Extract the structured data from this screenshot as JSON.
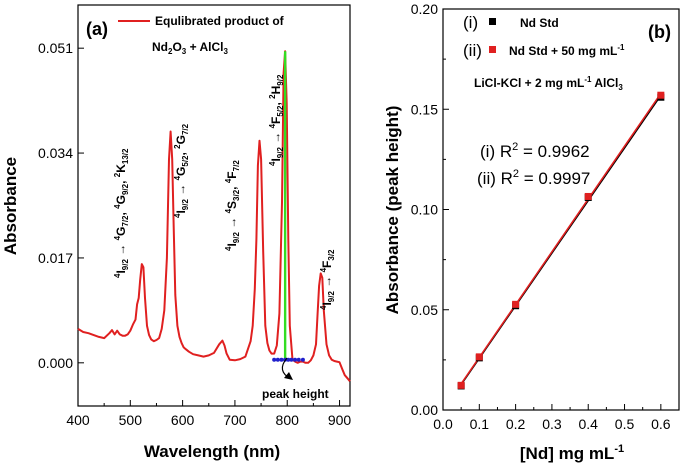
{
  "chart_data": [
    {
      "type": "line",
      "panel_label": "(a)",
      "xlabel": "Wavelength (nm)",
      "ylabel": "Absorbance",
      "xlim": [
        400,
        920
      ],
      "ylim": [
        -0.007,
        0.058
      ],
      "xticks": [
        400,
        500,
        600,
        700,
        800,
        900
      ],
      "xtick_labels": [
        "400",
        "500",
        "600",
        "700",
        "800",
        "900"
      ],
      "yticks": [
        0.0,
        0.017,
        0.034,
        0.051
      ],
      "ytick_labels": [
        "0.000",
        "0.017",
        "0.034",
        "0.051"
      ],
      "legend": {
        "label": "Equlibrated product of",
        "line2": "Nd2O3 + AlCl3",
        "color": "#e02020",
        "placement": "top"
      },
      "series": [
        {
          "name": "Equlibrated product of Nd2O3 + AlCl3",
          "color": "#e02020",
          "x": [
            400,
            410,
            420,
            430,
            440,
            450,
            460,
            465,
            470,
            475,
            480,
            485,
            490,
            495,
            500,
            505,
            510,
            513,
            516,
            519,
            522,
            525,
            528,
            532,
            536,
            540,
            545,
            550,
            555,
            560,
            565,
            570,
            574,
            577,
            580,
            583,
            586,
            590,
            594,
            598,
            602,
            606,
            612,
            620,
            630,
            640,
            650,
            660,
            670,
            676,
            680,
            684,
            690,
            700,
            710,
            720,
            730,
            734,
            738,
            741,
            744,
            747,
            750,
            754,
            758,
            762,
            766,
            770,
            775,
            780,
            785,
            790,
            793,
            796,
            799,
            802,
            805,
            810,
            815,
            820,
            825,
            830,
            835,
            840,
            845,
            850,
            855,
            858,
            861,
            864,
            867,
            870,
            875,
            880,
            885,
            890,
            895,
            900,
            905,
            910,
            915,
            920
          ],
          "y": [
            0.0055,
            0.005,
            0.0048,
            0.0045,
            0.0042,
            0.004,
            0.0048,
            0.0053,
            0.0046,
            0.0052,
            0.0046,
            0.0044,
            0.0044,
            0.0046,
            0.0052,
            0.0062,
            0.007,
            0.0095,
            0.0105,
            0.0135,
            0.016,
            0.0155,
            0.0105,
            0.006,
            0.0045,
            0.0038,
            0.0035,
            0.0037,
            0.004,
            0.0055,
            0.0085,
            0.017,
            0.033,
            0.0375,
            0.033,
            0.022,
            0.011,
            0.006,
            0.0042,
            0.0032,
            0.0025,
            0.0022,
            0.0018,
            0.0014,
            0.0012,
            0.001,
            0.0012,
            0.0016,
            0.003,
            0.0036,
            0.0028,
            0.0015,
            0.0005,
            0.0004,
            0.0006,
            0.001,
            0.0035,
            0.006,
            0.012,
            0.02,
            0.032,
            0.036,
            0.033,
            0.018,
            0.006,
            0.0032,
            0.002,
            0.0015,
            0.0015,
            0.0028,
            0.008,
            0.026,
            0.047,
            0.0505,
            0.042,
            0.02,
            0.006,
            0.0005,
            0.0002,
            0.0,
            0.0002,
            0.0002,
            0.0,
            0.0,
            0.0004,
            0.0012,
            0.003,
            0.008,
            0.0125,
            0.0145,
            0.0138,
            0.0085,
            0.003,
            0.0012,
            0.0005,
            0.0003,
            0.0002,
            0.0001,
            -0.001,
            -0.002,
            -0.0025,
            -0.003
          ]
        }
      ],
      "peak_height_marker": {
        "x": 796,
        "baseline_y": 0.0005,
        "peak_y": 0.0505,
        "color": "#33dd22"
      },
      "baseline_dots": {
        "x": [
          775,
          782,
          789,
          796,
          802,
          808,
          815,
          822,
          830
        ],
        "y": [
          0.0005,
          0.0005,
          0.0005,
          0.0005,
          0.0005,
          0.0005,
          0.0005,
          0.0005,
          0.0005
        ],
        "color": "#2020cc"
      },
      "annotations": [
        {
          "text": "peak height"
        },
        {
          "prefix": "4",
          "main": "I",
          "sub": "9/2",
          "arrow": "→",
          "lines": [
            {
              "sup": "4",
              "main": "G",
              "sub": "7/2",
              "tail": ","
            },
            {
              "sup": "4",
              "main": "G",
              "sub": "9/2",
              "tail": ","
            },
            {
              "sup": "2",
              "main": "K",
              "sub": "13/2",
              "tail": ""
            }
          ]
        },
        {
          "prefix": "4",
          "main": "I",
          "sub": "9/2",
          "arrow": "→",
          "lines": [
            {
              "sup": "4",
              "main": "G",
              "sub": "5/2",
              "tail": ","
            },
            {
              "sup": "2",
              "main": "G",
              "sub": "7/2",
              "tail": ""
            }
          ]
        },
        {
          "prefix": "4",
          "main": "I",
          "sub": "9/2",
          "arrow": "→",
          "lines": [
            {
              "sup": "4",
              "main": "S",
              "sub": "3/2",
              "tail": ","
            },
            {
              "sup": "4",
              "main": "F",
              "sub": "7/2",
              "tail": ""
            }
          ]
        },
        {
          "prefix": "4",
          "main": "I",
          "sub": "9/2",
          "arrow": "→",
          "lines": [
            {
              "sup": "4",
              "main": "F",
              "sub": "5/2",
              "tail": ","
            },
            {
              "sup": "2",
              "main": "H",
              "sub": "9/2",
              "tail": ""
            }
          ]
        },
        {
          "prefix": "4",
          "main": "I",
          "sub": "9/2",
          "arrow": "→",
          "lines": [
            {
              "sup": "4",
              "main": "F",
              "sub": "3/2",
              "tail": ""
            }
          ]
        }
      ]
    },
    {
      "type": "scatter",
      "panel_label": "(b)",
      "xlabel": "[Nd] mg mL",
      "xlabel_sup": "-1",
      "ylabel": "Absorbance (peak height)",
      "xlim": [
        0.0,
        0.65
      ],
      "ylim": [
        0.0,
        0.2
      ],
      "xticks": [
        0.0,
        0.1,
        0.2,
        0.3,
        0.4,
        0.5,
        0.6
      ],
      "xtick_labels": [
        "0.0",
        "0.1",
        "0.2",
        "0.3",
        "0.4",
        "0.5",
        "0.6"
      ],
      "yticks": [
        0.0,
        0.05,
        0.1,
        0.15,
        0.2
      ],
      "ytick_labels": [
        "0.00",
        "0.05",
        "0.10",
        "0.15",
        "0.20"
      ],
      "legend": [
        {
          "prefix": "(i)",
          "label": "Nd Std",
          "color": "#000000"
        },
        {
          "prefix": "(ii)",
          "label": "Nd Std  + 50 mg mL",
          "sup": "-1",
          "color": "#e02020"
        }
      ],
      "medium_note": {
        "text": "LiCl-KCl  + 2 mg mL",
        "sup": "-1",
        "tail": " AlCl",
        "sub": "3"
      },
      "series": [
        {
          "name": "(i) Nd Std",
          "color": "#000000",
          "x": [
            0.05,
            0.1,
            0.2,
            0.4,
            0.6
          ],
          "y": [
            0.012,
            0.026,
            0.052,
            0.106,
            0.156
          ],
          "r2": "0.9962"
        },
        {
          "name": "(ii) Nd Std + 50 mg mL-1",
          "color": "#e02020",
          "x": [
            0.05,
            0.1,
            0.2,
            0.4,
            0.6
          ],
          "y": [
            0.0123,
            0.0265,
            0.0527,
            0.1065,
            0.157
          ],
          "r2": "0.9997"
        }
      ],
      "r2_labels": [
        {
          "prefix": "(i) R",
          "sup": "2",
          "value": " = 0.9962"
        },
        {
          "prefix": "(ii) R",
          "sup": "2",
          "value": " = 0.9997"
        }
      ]
    }
  ]
}
